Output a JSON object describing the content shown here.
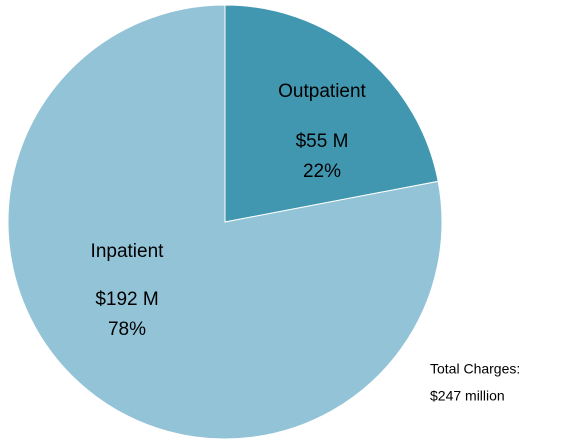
{
  "chart_data": {
    "type": "pie",
    "categories": [
      "Outpatient",
      "Inpatient"
    ],
    "values": [
      22,
      78
    ],
    "value_labels": [
      "22%",
      "78%"
    ],
    "amount_labels": [
      "$55 M",
      "$192 M"
    ],
    "colors": [
      "#4297b0",
      "#93c3d6"
    ],
    "annotations": [
      "Total Charges:",
      "$247 million"
    ]
  }
}
